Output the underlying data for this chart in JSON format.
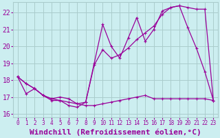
{
  "background_color": "#cceef0",
  "grid_color": "#aacccc",
  "line_color": "#990099",
  "xlabel": "Windchill (Refroidissement éolien,°C)",
  "xlim": [
    -0.5,
    23.5
  ],
  "ylim": [
    15.8,
    22.6
  ],
  "yticks": [
    16,
    17,
    18,
    19,
    20,
    21,
    22
  ],
  "xticks": [
    0,
    1,
    2,
    3,
    4,
    5,
    6,
    7,
    8,
    9,
    10,
    11,
    12,
    13,
    14,
    15,
    16,
    17,
    18,
    19,
    20,
    21,
    22,
    23
  ],
  "series1_x": [
    0,
    1,
    2,
    3,
    4,
    5,
    6,
    7,
    8,
    9,
    10,
    11,
    12,
    13,
    14,
    15,
    16,
    17,
    18,
    19,
    20,
    21,
    22,
    23
  ],
  "series1_y": [
    18.2,
    17.8,
    17.5,
    17.1,
    16.8,
    16.8,
    16.5,
    16.4,
    16.7,
    19.0,
    21.3,
    20.0,
    19.3,
    20.5,
    21.7,
    20.3,
    21.0,
    22.1,
    22.3,
    22.4,
    21.1,
    19.9,
    18.5,
    16.8
  ],
  "series2_x": [
    0,
    1,
    2,
    3,
    4,
    5,
    6,
    7,
    8,
    9,
    10,
    11,
    12,
    13,
    14,
    15,
    16,
    17,
    18,
    19,
    20,
    21,
    22,
    23
  ],
  "series2_y": [
    18.2,
    17.8,
    17.5,
    17.1,
    16.9,
    16.8,
    16.7,
    16.6,
    16.7,
    18.9,
    19.8,
    19.3,
    19.5,
    19.9,
    20.4,
    20.8,
    21.2,
    21.9,
    22.3,
    22.4,
    22.3,
    22.2,
    22.2,
    16.8
  ],
  "series3_x": [
    0,
    1,
    2,
    3,
    4,
    5,
    6,
    7,
    8,
    9,
    10,
    11,
    12,
    13,
    14,
    15,
    16,
    17,
    18,
    19,
    20,
    21,
    22,
    23
  ],
  "series3_y": [
    18.2,
    17.2,
    17.5,
    17.1,
    16.9,
    17.0,
    16.9,
    16.6,
    16.5,
    16.5,
    16.6,
    16.7,
    16.8,
    16.9,
    17.0,
    17.1,
    16.9,
    16.9,
    16.9,
    16.9,
    16.9,
    16.9,
    16.9,
    16.8
  ],
  "xlabel_fontsize": 8,
  "tick_fontsize": 7
}
